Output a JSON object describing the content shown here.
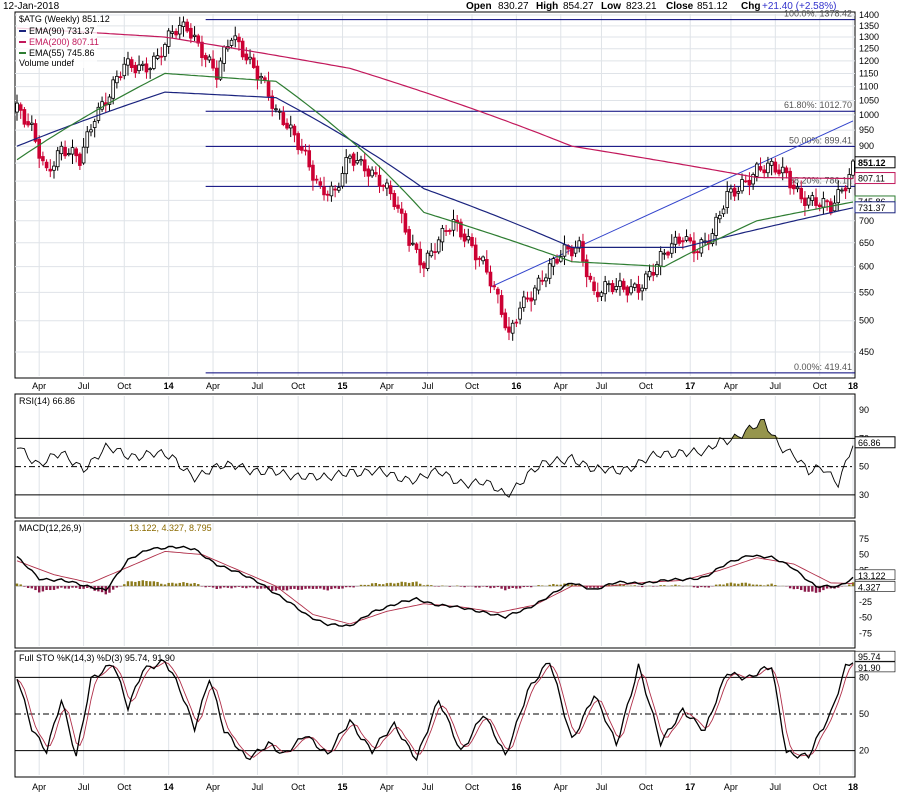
{
  "header": {
    "date": "12-Jan-2018",
    "open_label": "Open",
    "open": "830.27",
    "high_label": "High",
    "high": "854.27",
    "low_label": "Low",
    "low": "823.21",
    "close_label": "Close",
    "close": "851.12",
    "chg_label": "Chg",
    "chg": "+21.40 (+2.58%)",
    "chg_color": "#3333cc"
  },
  "legend": {
    "symbol": "$ATG (Weekly) 851.12",
    "ema90": "EMA(90) 731.37",
    "ema200": "EMA(200) 807.11",
    "ema55": "EMA(55) 745.86",
    "volume": "Volume undef"
  },
  "colors": {
    "up": "#000000",
    "down": "#cc0033",
    "ema90": "#1a237e",
    "ema200": "#c2185b",
    "ema55": "#2e7d32",
    "fib": "#00007a",
    "trend": "#3344cc",
    "panel_bg": "#ffffff",
    "axis_bg": "#d9e0ea",
    "grid": "#dfe3e8",
    "macd_pos": "#8b7a1a",
    "macd_neg": "#8b1a4a"
  },
  "chart_data": [
    {
      "type": "candlestick",
      "title": "$ATG (Weekly) 851.12",
      "x_tick_labels": [
        "Apr",
        "Jul",
        "Oct",
        "14",
        "Apr",
        "Jul",
        "Oct",
        "15",
        "Apr",
        "Jul",
        "Oct",
        "16",
        "Apr",
        "Jul",
        "Oct",
        "17",
        "Apr",
        "Jul",
        "Oct",
        "18"
      ],
      "ylim": [
        415,
        1405
      ],
      "y_ticks": [
        450,
        500,
        550,
        600,
        650,
        700,
        750,
        800,
        850,
        900,
        950,
        1000,
        1050,
        1100,
        1150,
        1200,
        1250,
        1300,
        1350,
        1400
      ],
      "scale": "log",
      "current_price_tag": "851.12",
      "ema200_tag": "807.11",
      "ema55_tag": "745.86",
      "ema90_tag": "731.37",
      "anchors": [
        {
          "x": 0,
          "close": 1010
        },
        {
          "x": 4,
          "close": 960
        },
        {
          "x": 8,
          "close": 830
        },
        {
          "x": 12,
          "close": 880
        },
        {
          "x": 17,
          "close": 860
        },
        {
          "x": 21,
          "close": 1010
        },
        {
          "x": 25,
          "close": 1070
        },
        {
          "x": 29,
          "close": 1170
        },
        {
          "x": 34,
          "close": 1180
        },
        {
          "x": 38,
          "close": 1220
        },
        {
          "x": 42,
          "close": 1310
        },
        {
          "x": 46,
          "close": 1340
        },
        {
          "x": 50,
          "close": 1255
        },
        {
          "x": 54,
          "close": 1150
        },
        {
          "x": 58,
          "close": 1290
        },
        {
          "x": 62,
          "close": 1220
        },
        {
          "x": 66,
          "close": 1150
        },
        {
          "x": 70,
          "close": 1000
        },
        {
          "x": 74,
          "close": 940
        },
        {
          "x": 78,
          "close": 880
        },
        {
          "x": 82,
          "close": 780
        },
        {
          "x": 86,
          "close": 760
        },
        {
          "x": 90,
          "close": 870
        },
        {
          "x": 94,
          "close": 850
        },
        {
          "x": 98,
          "close": 800
        },
        {
          "x": 102,
          "close": 740
        },
        {
          "x": 106,
          "close": 660
        },
        {
          "x": 110,
          "close": 610
        },
        {
          "x": 114,
          "close": 650
        },
        {
          "x": 118,
          "close": 690
        },
        {
          "x": 122,
          "close": 660
        },
        {
          "x": 126,
          "close": 610
        },
        {
          "x": 130,
          "close": 530
        },
        {
          "x": 133,
          "close": 470
        },
        {
          "x": 136,
          "close": 530
        },
        {
          "x": 140,
          "close": 560
        },
        {
          "x": 144,
          "close": 590
        },
        {
          "x": 148,
          "close": 630
        },
        {
          "x": 152,
          "close": 650
        },
        {
          "x": 156,
          "close": 545
        },
        {
          "x": 160,
          "close": 555
        },
        {
          "x": 164,
          "close": 560
        },
        {
          "x": 168,
          "close": 565
        },
        {
          "x": 172,
          "close": 590
        },
        {
          "x": 176,
          "close": 630
        },
        {
          "x": 180,
          "close": 670
        },
        {
          "x": 184,
          "close": 640
        },
        {
          "x": 188,
          "close": 660
        },
        {
          "x": 192,
          "close": 760
        },
        {
          "x": 196,
          "close": 800
        },
        {
          "x": 200,
          "close": 830
        },
        {
          "x": 204,
          "close": 830
        },
        {
          "x": 208,
          "close": 820
        },
        {
          "x": 212,
          "close": 765
        },
        {
          "x": 216,
          "close": 740
        },
        {
          "x": 220,
          "close": 725
        },
        {
          "x": 224,
          "close": 800
        },
        {
          "x": 226,
          "close": 851
        }
      ],
      "ema_values": [
        {
          "name": "EMA(90)",
          "values_at": [
            [
              0,
              900
            ],
            [
              40,
              1080
            ],
            [
              70,
              1060
            ],
            [
              110,
              780
            ],
            [
              150,
              640
            ],
            [
              180,
              640
            ],
            [
              226,
              731.37
            ]
          ]
        },
        {
          "name": "EMA(200)",
          "values_at": [
            [
              0,
              1340
            ],
            [
              40,
              1300
            ],
            [
              90,
              1170
            ],
            [
              150,
              900
            ],
            [
              200,
              810
            ],
            [
              226,
              807.11
            ]
          ]
        },
        {
          "name": "EMA(55)",
          "values_at": [
            [
              0,
              860
            ],
            [
              40,
              1150
            ],
            [
              70,
              1120
            ],
            [
              110,
              720
            ],
            [
              150,
              610
            ],
            [
              175,
              600
            ],
            [
              200,
              700
            ],
            [
              226,
              745.86
            ]
          ]
        }
      ],
      "fib_levels": [
        {
          "label": "100.0%: 1378.42",
          "value": 1378.42
        },
        {
          "label": "61.80%: 1012.70",
          "value": 1012.7
        },
        {
          "label": "50.00%: 899.41",
          "value": 899.41
        },
        {
          "label": "38.20%: 786.12",
          "value": 786.12
        },
        {
          "label": "0.00%: 419.41",
          "value": 419.41
        }
      ],
      "trendline": [
        [
          128,
          560
        ],
        [
          226,
          980
        ]
      ]
    },
    {
      "type": "line",
      "title": "RSI(14) 66.86",
      "ylim": [
        15,
        100
      ],
      "y_ticks": [
        30,
        50,
        70,
        90
      ],
      "current_value": "66.86",
      "anchors": [
        [
          0,
          66
        ],
        [
          6,
          52
        ],
        [
          12,
          58
        ],
        [
          18,
          50
        ],
        [
          24,
          62
        ],
        [
          30,
          58
        ],
        [
          36,
          60
        ],
        [
          42,
          55
        ],
        [
          48,
          44
        ],
        [
          54,
          48
        ],
        [
          60,
          52
        ],
        [
          66,
          46
        ],
        [
          72,
          44
        ],
        [
          78,
          45
        ],
        [
          84,
          40
        ],
        [
          90,
          48
        ],
        [
          96,
          46
        ],
        [
          102,
          43
        ],
        [
          108,
          42
        ],
        [
          114,
          45
        ],
        [
          120,
          40
        ],
        [
          126,
          38
        ],
        [
          132,
          30
        ],
        [
          138,
          45
        ],
        [
          144,
          52
        ],
        [
          150,
          58
        ],
        [
          156,
          46
        ],
        [
          162,
          48
        ],
        [
          168,
          52
        ],
        [
          174,
          58
        ],
        [
          180,
          62
        ],
        [
          186,
          58
        ],
        [
          190,
          68
        ],
        [
          194,
          72
        ],
        [
          198,
          76
        ],
        [
          202,
          80
        ],
        [
          206,
          66
        ],
        [
          210,
          60
        ],
        [
          214,
          45
        ],
        [
          218,
          48
        ],
        [
          222,
          40
        ],
        [
          226,
          67
        ]
      ]
    },
    {
      "type": "line",
      "title": "MACD(12,26,9)",
      "values_text": "13.122, 4.327, 8.795",
      "ylim": [
        -95,
        100
      ],
      "y_ticks": [
        -75,
        -50,
        -25,
        25,
        50,
        75
      ],
      "tags": [
        "13.122",
        "4.327"
      ],
      "macd_anchors": [
        [
          0,
          45
        ],
        [
          6,
          12
        ],
        [
          12,
          10
        ],
        [
          18,
          0
        ],
        [
          24,
          -5
        ],
        [
          30,
          40
        ],
        [
          36,
          60
        ],
        [
          42,
          62
        ],
        [
          48,
          58
        ],
        [
          54,
          35
        ],
        [
          60,
          20
        ],
        [
          66,
          5
        ],
        [
          72,
          -20
        ],
        [
          78,
          -45
        ],
        [
          84,
          -60
        ],
        [
          90,
          -65
        ],
        [
          96,
          -40
        ],
        [
          102,
          -30
        ],
        [
          108,
          -20
        ],
        [
          114,
          -30
        ],
        [
          120,
          -35
        ],
        [
          126,
          -40
        ],
        [
          132,
          -50
        ],
        [
          138,
          -35
        ],
        [
          144,
          -15
        ],
        [
          150,
          5
        ],
        [
          156,
          -5
        ],
        [
          162,
          5
        ],
        [
          168,
          5
        ],
        [
          174,
          8
        ],
        [
          180,
          10
        ],
        [
          186,
          15
        ],
        [
          192,
          35
        ],
        [
          198,
          50
        ],
        [
          204,
          45
        ],
        [
          210,
          28
        ],
        [
          216,
          0
        ],
        [
          222,
          -2
        ],
        [
          226,
          13
        ]
      ],
      "signal_anchors": [
        [
          0,
          40
        ],
        [
          10,
          18
        ],
        [
          20,
          5
        ],
        [
          30,
          30
        ],
        [
          40,
          55
        ],
        [
          50,
          50
        ],
        [
          60,
          25
        ],
        [
          70,
          0
        ],
        [
          80,
          -45
        ],
        [
          90,
          -60
        ],
        [
          100,
          -40
        ],
        [
          110,
          -28
        ],
        [
          120,
          -33
        ],
        [
          130,
          -42
        ],
        [
          140,
          -30
        ],
        [
          150,
          0
        ],
        [
          160,
          0
        ],
        [
          170,
          6
        ],
        [
          180,
          9
        ],
        [
          190,
          25
        ],
        [
          200,
          45
        ],
        [
          210,
          35
        ],
        [
          220,
          5
        ],
        [
          226,
          4
        ]
      ]
    },
    {
      "type": "line",
      "title": "Full STO %K(14,3) %D(3) 95.74, 91.90",
      "ylim": [
        0,
        100
      ],
      "y_ticks": [
        20,
        50,
        80
      ],
      "tags": [
        "95.74",
        "91.90"
      ],
      "k_anchors": [
        [
          0,
          80
        ],
        [
          4,
          40
        ],
        [
          8,
          20
        ],
        [
          12,
          60
        ],
        [
          16,
          15
        ],
        [
          20,
          80
        ],
        [
          26,
          90
        ],
        [
          30,
          55
        ],
        [
          34,
          88
        ],
        [
          40,
          92
        ],
        [
          44,
          70
        ],
        [
          48,
          40
        ],
        [
          52,
          80
        ],
        [
          56,
          35
        ],
        [
          62,
          15
        ],
        [
          68,
          25
        ],
        [
          72,
          15
        ],
        [
          78,
          35
        ],
        [
          84,
          15
        ],
        [
          90,
          45
        ],
        [
          96,
          20
        ],
        [
          102,
          40
        ],
        [
          108,
          15
        ],
        [
          114,
          60
        ],
        [
          120,
          20
        ],
        [
          126,
          50
        ],
        [
          132,
          15
        ],
        [
          138,
          70
        ],
        [
          144,
          92
        ],
        [
          150,
          30
        ],
        [
          156,
          65
        ],
        [
          162,
          25
        ],
        [
          168,
          90
        ],
        [
          174,
          25
        ],
        [
          180,
          55
        ],
        [
          186,
          35
        ],
        [
          192,
          85
        ],
        [
          198,
          80
        ],
        [
          204,
          88
        ],
        [
          208,
          20
        ],
        [
          214,
          15
        ],
        [
          220,
          50
        ],
        [
          224,
          90
        ],
        [
          226,
          95
        ]
      ]
    }
  ]
}
